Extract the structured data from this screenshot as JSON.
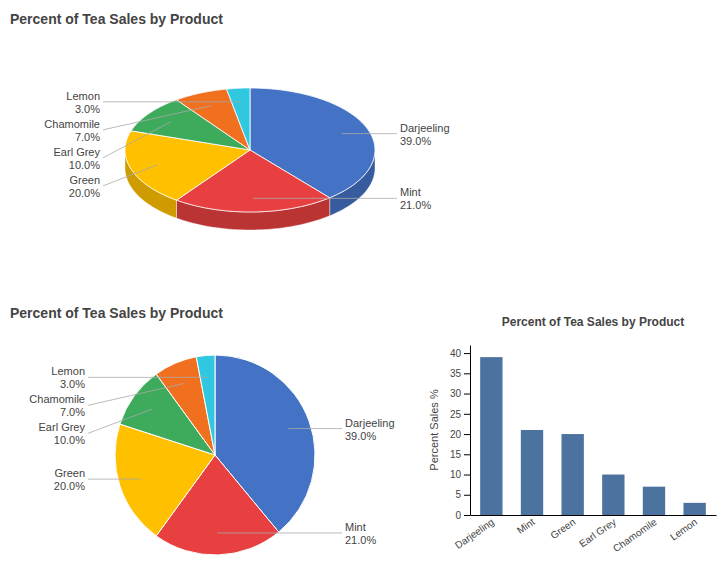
{
  "chart_data": [
    {
      "type": "pie3d",
      "title": "Percent of Tea Sales by Product",
      "categories": [
        "Darjeeling",
        "Mint",
        "Green",
        "Earl Grey",
        "Chamomile",
        "Lemon"
      ],
      "values": [
        39.0,
        21.0,
        20.0,
        10.0,
        7.0,
        3.0
      ],
      "value_labels": [
        "39.0%",
        "21.0%",
        "20.0%",
        "10.0%",
        "7.0%",
        "3.0%"
      ],
      "colors": [
        "#4472C4",
        "#E84040",
        "#FFC000",
        "#3DAA5C",
        "#F07020",
        "#30C8E0"
      ],
      "data_labels": true
    },
    {
      "type": "pie",
      "title": "Percent of Tea Sales by Product",
      "categories": [
        "Darjeeling",
        "Mint",
        "Green",
        "Earl Grey",
        "Chamomile",
        "Lemon"
      ],
      "values": [
        39.0,
        21.0,
        20.0,
        10.0,
        7.0,
        3.0
      ],
      "value_labels": [
        "39.0%",
        "21.0%",
        "20.0%",
        "10.0%",
        "7.0%",
        "3.0%"
      ],
      "colors": [
        "#4472C4",
        "#E84040",
        "#FFC000",
        "#3DAA5C",
        "#F07020",
        "#30C8E0"
      ],
      "data_labels": true
    },
    {
      "type": "bar",
      "title": "Percent of Tea Sales by Product",
      "categories": [
        "Darjeeling",
        "Mint",
        "Green",
        "Earl Grey",
        "Chamomile",
        "Lemon"
      ],
      "values": [
        39.0,
        21.0,
        20.0,
        10.0,
        7.0,
        3.0
      ],
      "color": "#4C72A0",
      "ylabel": "Percent Sales %",
      "ylim": [
        0,
        42
      ],
      "yticks": [
        0,
        5,
        10,
        15,
        20,
        25,
        30,
        35,
        40
      ],
      "grid": false
    }
  ]
}
